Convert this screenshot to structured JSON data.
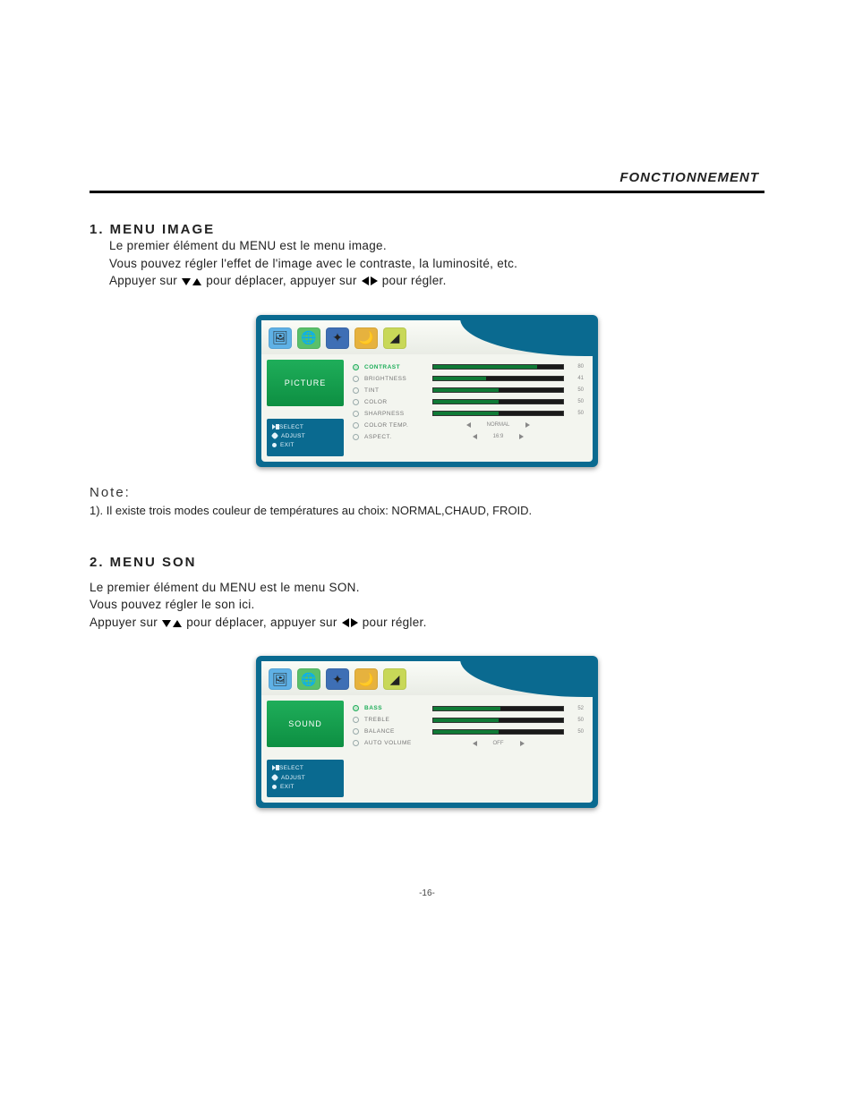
{
  "header": {
    "title": "FONCTIONNEMENT"
  },
  "section1": {
    "title": "1. MENU IMAGE",
    "line1": "Le premier élément du MENU est le menu image.",
    "line2": "Vous pouvez régler l'effet de l'image avec le contraste, la luminosité, etc.",
    "instr_a": "Appuyer sur",
    "instr_b": "pour déplacer, appuyer sur",
    "instr_c": "pour régler."
  },
  "osd1": {
    "side_title": "PICTURE",
    "legend": {
      "select": "SELECT",
      "adjust": "ADJUST",
      "exit": "EXIT"
    },
    "tabs": [
      {
        "bg": "#5fb1e6",
        "glyph": "🖼"
      },
      {
        "bg": "#59c06b",
        "glyph": "🌐"
      },
      {
        "bg": "#3e6fb5",
        "glyph": "✦"
      },
      {
        "bg": "#e6b23e",
        "glyph": "🌙"
      },
      {
        "bg": "#c8d858",
        "glyph": "◢"
      }
    ],
    "rows": [
      {
        "label": "CONTRAST",
        "type": "bar",
        "value": 80,
        "max": 100,
        "active": true
      },
      {
        "label": "BRIGHTNESS",
        "type": "bar",
        "value": 41,
        "max": 100
      },
      {
        "label": "TINT",
        "type": "bar",
        "value": 50,
        "max": 100
      },
      {
        "label": "COLOR",
        "type": "bar",
        "value": 50,
        "max": 100
      },
      {
        "label": "SHARPNESS",
        "type": "bar",
        "value": 50,
        "max": 100
      },
      {
        "label": "COLOR TEMP.",
        "type": "sel",
        "text": "NORMAL"
      },
      {
        "label": "ASPECT.",
        "type": "sel",
        "text": "16:9"
      }
    ]
  },
  "note": {
    "title": "Note:",
    "text": "1). Il existe trois modes couleur de températures au choix: NORMAL,CHAUD, FROID."
  },
  "section2": {
    "title": "2. MENU SON",
    "line1": "Le premier élément du MENU est le menu SON.",
    "line2": "Vous pouvez régler le son ici.",
    "instr_a": "Appuyer sur",
    "instr_b": "pour déplacer, appuyer sur",
    "instr_c": "pour régler."
  },
  "osd2": {
    "side_title": "SOUND",
    "legend": {
      "select": "SELECT",
      "adjust": "ADJUST",
      "exit": "EXIT"
    },
    "tabs": [
      {
        "bg": "#5fb1e6",
        "glyph": "🖼"
      },
      {
        "bg": "#59c06b",
        "glyph": "🌐"
      },
      {
        "bg": "#3e6fb5",
        "glyph": "✦"
      },
      {
        "bg": "#e6b23e",
        "glyph": "🌙"
      },
      {
        "bg": "#c8d858",
        "glyph": "◢"
      }
    ],
    "rows": [
      {
        "label": "BASS",
        "type": "bar",
        "value": 52,
        "max": 100,
        "active": true
      },
      {
        "label": "TREBLE",
        "type": "bar",
        "value": 50,
        "max": 100
      },
      {
        "label": "BALANCE",
        "type": "bar",
        "value": 50,
        "max": 100
      },
      {
        "label": "AUTO VOLUME",
        "type": "sel",
        "text": "OFF"
      }
    ]
  },
  "page_number": "-16-"
}
